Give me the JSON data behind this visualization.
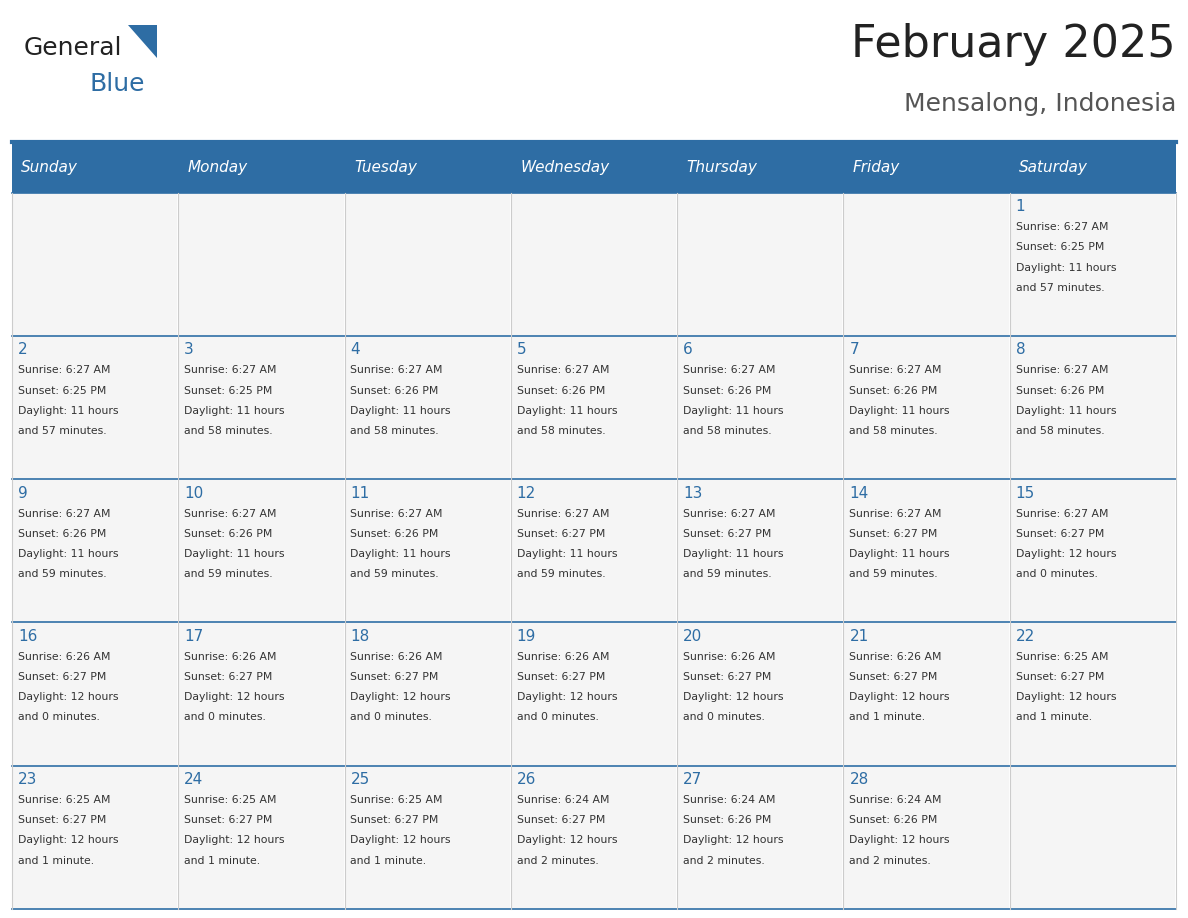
{
  "title": "February 2025",
  "subtitle": "Mensalong, Indonesia",
  "days_of_week": [
    "Sunday",
    "Monday",
    "Tuesday",
    "Wednesday",
    "Thursday",
    "Friday",
    "Saturday"
  ],
  "header_bg": "#2e6da4",
  "header_text": "#ffffff",
  "border_color": "#2e6da4",
  "text_color": "#333333",
  "day_num_color": "#2e6da4",
  "calendar_data": [
    [
      null,
      null,
      null,
      null,
      null,
      null,
      1
    ],
    [
      2,
      3,
      4,
      5,
      6,
      7,
      8
    ],
    [
      9,
      10,
      11,
      12,
      13,
      14,
      15
    ],
    [
      16,
      17,
      18,
      19,
      20,
      21,
      22
    ],
    [
      23,
      24,
      25,
      26,
      27,
      28,
      null
    ]
  ],
  "sunrise_sunset": {
    "1": [
      "Sunrise: 6:27 AM",
      "Sunset: 6:25 PM",
      "Daylight: 11 hours",
      "and 57 minutes."
    ],
    "2": [
      "Sunrise: 6:27 AM",
      "Sunset: 6:25 PM",
      "Daylight: 11 hours",
      "and 57 minutes."
    ],
    "3": [
      "Sunrise: 6:27 AM",
      "Sunset: 6:25 PM",
      "Daylight: 11 hours",
      "and 58 minutes."
    ],
    "4": [
      "Sunrise: 6:27 AM",
      "Sunset: 6:26 PM",
      "Daylight: 11 hours",
      "and 58 minutes."
    ],
    "5": [
      "Sunrise: 6:27 AM",
      "Sunset: 6:26 PM",
      "Daylight: 11 hours",
      "and 58 minutes."
    ],
    "6": [
      "Sunrise: 6:27 AM",
      "Sunset: 6:26 PM",
      "Daylight: 11 hours",
      "and 58 minutes."
    ],
    "7": [
      "Sunrise: 6:27 AM",
      "Sunset: 6:26 PM",
      "Daylight: 11 hours",
      "and 58 minutes."
    ],
    "8": [
      "Sunrise: 6:27 AM",
      "Sunset: 6:26 PM",
      "Daylight: 11 hours",
      "and 58 minutes."
    ],
    "9": [
      "Sunrise: 6:27 AM",
      "Sunset: 6:26 PM",
      "Daylight: 11 hours",
      "and 59 minutes."
    ],
    "10": [
      "Sunrise: 6:27 AM",
      "Sunset: 6:26 PM",
      "Daylight: 11 hours",
      "and 59 minutes."
    ],
    "11": [
      "Sunrise: 6:27 AM",
      "Sunset: 6:26 PM",
      "Daylight: 11 hours",
      "and 59 minutes."
    ],
    "12": [
      "Sunrise: 6:27 AM",
      "Sunset: 6:27 PM",
      "Daylight: 11 hours",
      "and 59 minutes."
    ],
    "13": [
      "Sunrise: 6:27 AM",
      "Sunset: 6:27 PM",
      "Daylight: 11 hours",
      "and 59 minutes."
    ],
    "14": [
      "Sunrise: 6:27 AM",
      "Sunset: 6:27 PM",
      "Daylight: 11 hours",
      "and 59 minutes."
    ],
    "15": [
      "Sunrise: 6:27 AM",
      "Sunset: 6:27 PM",
      "Daylight: 12 hours",
      "and 0 minutes."
    ],
    "16": [
      "Sunrise: 6:26 AM",
      "Sunset: 6:27 PM",
      "Daylight: 12 hours",
      "and 0 minutes."
    ],
    "17": [
      "Sunrise: 6:26 AM",
      "Sunset: 6:27 PM",
      "Daylight: 12 hours",
      "and 0 minutes."
    ],
    "18": [
      "Sunrise: 6:26 AM",
      "Sunset: 6:27 PM",
      "Daylight: 12 hours",
      "and 0 minutes."
    ],
    "19": [
      "Sunrise: 6:26 AM",
      "Sunset: 6:27 PM",
      "Daylight: 12 hours",
      "and 0 minutes."
    ],
    "20": [
      "Sunrise: 6:26 AM",
      "Sunset: 6:27 PM",
      "Daylight: 12 hours",
      "and 0 minutes."
    ],
    "21": [
      "Sunrise: 6:26 AM",
      "Sunset: 6:27 PM",
      "Daylight: 12 hours",
      "and 1 minute."
    ],
    "22": [
      "Sunrise: 6:25 AM",
      "Sunset: 6:27 PM",
      "Daylight: 12 hours",
      "and 1 minute."
    ],
    "23": [
      "Sunrise: 6:25 AM",
      "Sunset: 6:27 PM",
      "Daylight: 12 hours",
      "and 1 minute."
    ],
    "24": [
      "Sunrise: 6:25 AM",
      "Sunset: 6:27 PM",
      "Daylight: 12 hours",
      "and 1 minute."
    ],
    "25": [
      "Sunrise: 6:25 AM",
      "Sunset: 6:27 PM",
      "Daylight: 12 hours",
      "and 1 minute."
    ],
    "26": [
      "Sunrise: 6:24 AM",
      "Sunset: 6:27 PM",
      "Daylight: 12 hours",
      "and 2 minutes."
    ],
    "27": [
      "Sunrise: 6:24 AM",
      "Sunset: 6:26 PM",
      "Daylight: 12 hours",
      "and 2 minutes."
    ],
    "28": [
      "Sunrise: 6:24 AM",
      "Sunset: 6:26 PM",
      "Daylight: 12 hours",
      "and 2 minutes."
    ]
  },
  "logo_text_general": "General",
  "logo_text_blue": "Blue",
  "logo_color_general": "#222222",
  "logo_color_blue": "#2e6da4",
  "logo_triangle_color": "#2e6da4"
}
